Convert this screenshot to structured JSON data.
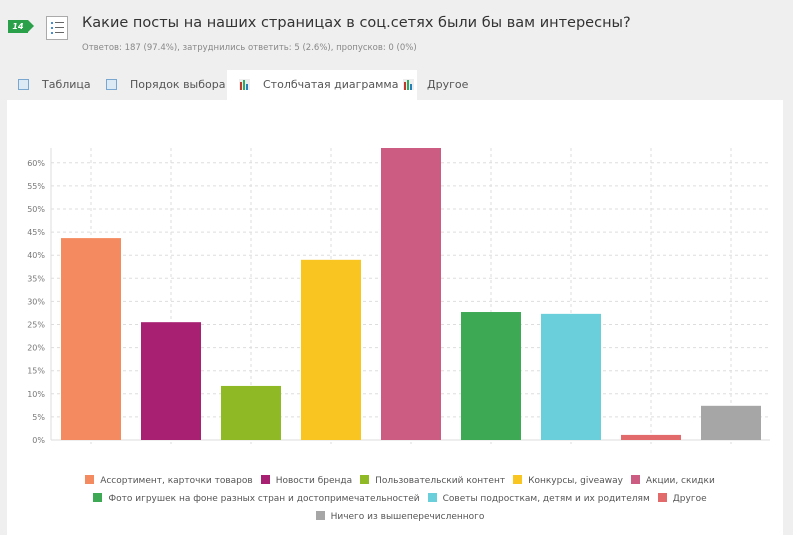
{
  "question": {
    "number": "14",
    "title": "Какие посты на наших страницах в соц.сетях были бы вам интересны?",
    "stats": "Ответов: 187 (97.4%), затруднились ответить: 5 (2.6%), пропусков: 0 (0%)"
  },
  "tabs": [
    {
      "label": "Таблица",
      "icon": "table-icon",
      "active": false
    },
    {
      "label": "Порядок выбора",
      "icon": "table-icon",
      "active": false
    },
    {
      "label": "Столбчатая диаграмма",
      "icon": "bar-chart-icon",
      "active": true
    },
    {
      "label": "Другое",
      "icon": "bar-chart-icon",
      "active": false
    }
  ],
  "chart_data": {
    "type": "bar",
    "categories": [
      "Ассортимент, карточки товаров",
      "Новости бренда",
      "Пользовательский контент",
      "Конкурсы, giveaway",
      "Акции, скидки",
      "Фото игрушек на фоне разных стран и достопримечательностей",
      "Советы подросткам, детям и их родителям",
      "Другое",
      "Ничего из вышеперечисленного"
    ],
    "values": [
      43.7,
      25.5,
      11.7,
      39.0,
      63.2,
      27.7,
      27.3,
      1.1,
      7.4
    ],
    "colors": [
      "#f48b60",
      "#a72072",
      "#8fba25",
      "#f9c520",
      "#cd5c82",
      "#3ea955",
      "#6acfda",
      "#e26a6a",
      "#a6a6a6"
    ],
    "yticks": [
      "0%",
      "5%",
      "10%",
      "15%",
      "20%",
      "25%",
      "30%",
      "35%",
      "40%",
      "45%",
      "50%",
      "55%",
      "60%"
    ],
    "ylim": [
      0,
      63.2
    ],
    "grid": true,
    "legend": "bottom"
  }
}
